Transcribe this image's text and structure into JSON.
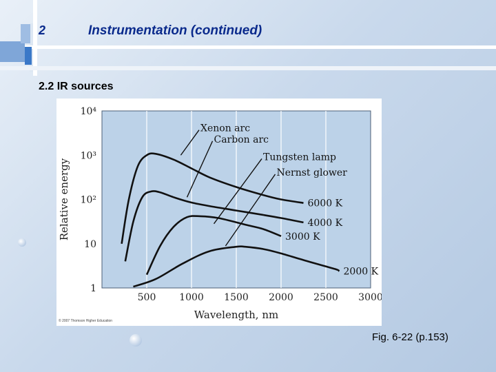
{
  "slide": {
    "number": "2",
    "title": "Instrumentation (continued)",
    "subtitle": "2.2 IR sources",
    "caption": "Fig. 6-22 (p.153)",
    "copyright": "© 2007 Thomson Higher Education"
  },
  "chart_data": {
    "type": "line",
    "xlabel": "Wavelength, nm",
    "ylabel": "Relative energy",
    "xlim": [
      0,
      3000
    ],
    "ylim_log10": [
      0,
      4
    ],
    "y_scale": "log",
    "x_ticks": [
      "500",
      "1000",
      "1500",
      "2000",
      "2500",
      "3000"
    ],
    "y_ticks": [
      "1",
      "10",
      "10²",
      "10³",
      "10⁴"
    ],
    "grid": "vertical",
    "series": [
      {
        "name": "6000 K",
        "points": [
          [
            220,
            1.0
          ],
          [
            300,
            2.0
          ],
          [
            400,
            2.75
          ],
          [
            500,
            3.0
          ],
          [
            600,
            3.03
          ],
          [
            800,
            2.9
          ],
          [
            1000,
            2.7
          ],
          [
            1200,
            2.5
          ],
          [
            1500,
            2.28
          ],
          [
            1800,
            2.1
          ],
          [
            2000,
            2.0
          ],
          [
            2250,
            1.92
          ]
        ]
      },
      {
        "name": "4000 K",
        "points": [
          [
            260,
            0.6
          ],
          [
            350,
            1.5
          ],
          [
            450,
            2.05
          ],
          [
            550,
            2.18
          ],
          [
            650,
            2.16
          ],
          [
            800,
            2.05
          ],
          [
            1000,
            1.93
          ],
          [
            1200,
            1.85
          ],
          [
            1500,
            1.75
          ],
          [
            1800,
            1.65
          ],
          [
            2000,
            1.58
          ],
          [
            2250,
            1.48
          ]
        ]
      },
      {
        "name": "3000 K",
        "points": [
          [
            500,
            0.3
          ],
          [
            650,
            0.95
          ],
          [
            800,
            1.38
          ],
          [
            950,
            1.6
          ],
          [
            1100,
            1.62
          ],
          [
            1300,
            1.58
          ],
          [
            1600,
            1.43
          ],
          [
            1800,
            1.33
          ],
          [
            2000,
            1.17
          ]
        ]
      },
      {
        "name": "2000 K",
        "points": [
          [
            350,
            0.03
          ],
          [
            600,
            0.2
          ],
          [
            900,
            0.55
          ],
          [
            1200,
            0.83
          ],
          [
            1500,
            0.93
          ],
          [
            1600,
            0.93
          ],
          [
            1800,
            0.88
          ],
          [
            2000,
            0.78
          ],
          [
            2300,
            0.6
          ],
          [
            2600,
            0.43
          ],
          [
            2650,
            0.38
          ]
        ]
      }
    ],
    "annotations": [
      {
        "text": "Xenon arc",
        "at": [
          1100,
          3.6
        ],
        "arrow_to": [
          880,
          3.0
        ]
      },
      {
        "text": "Carbon arc",
        "at": [
          1250,
          3.35
        ],
        "arrow_to": [
          950,
          2.05
        ]
      },
      {
        "text": "Tungsten lamp",
        "at": [
          1800,
          2.95
        ],
        "arrow_to": [
          1250,
          1.45
        ]
      },
      {
        "text": "Nernst glower",
        "at": [
          1950,
          2.6
        ],
        "arrow_to": [
          1380,
          0.95
        ]
      }
    ]
  }
}
